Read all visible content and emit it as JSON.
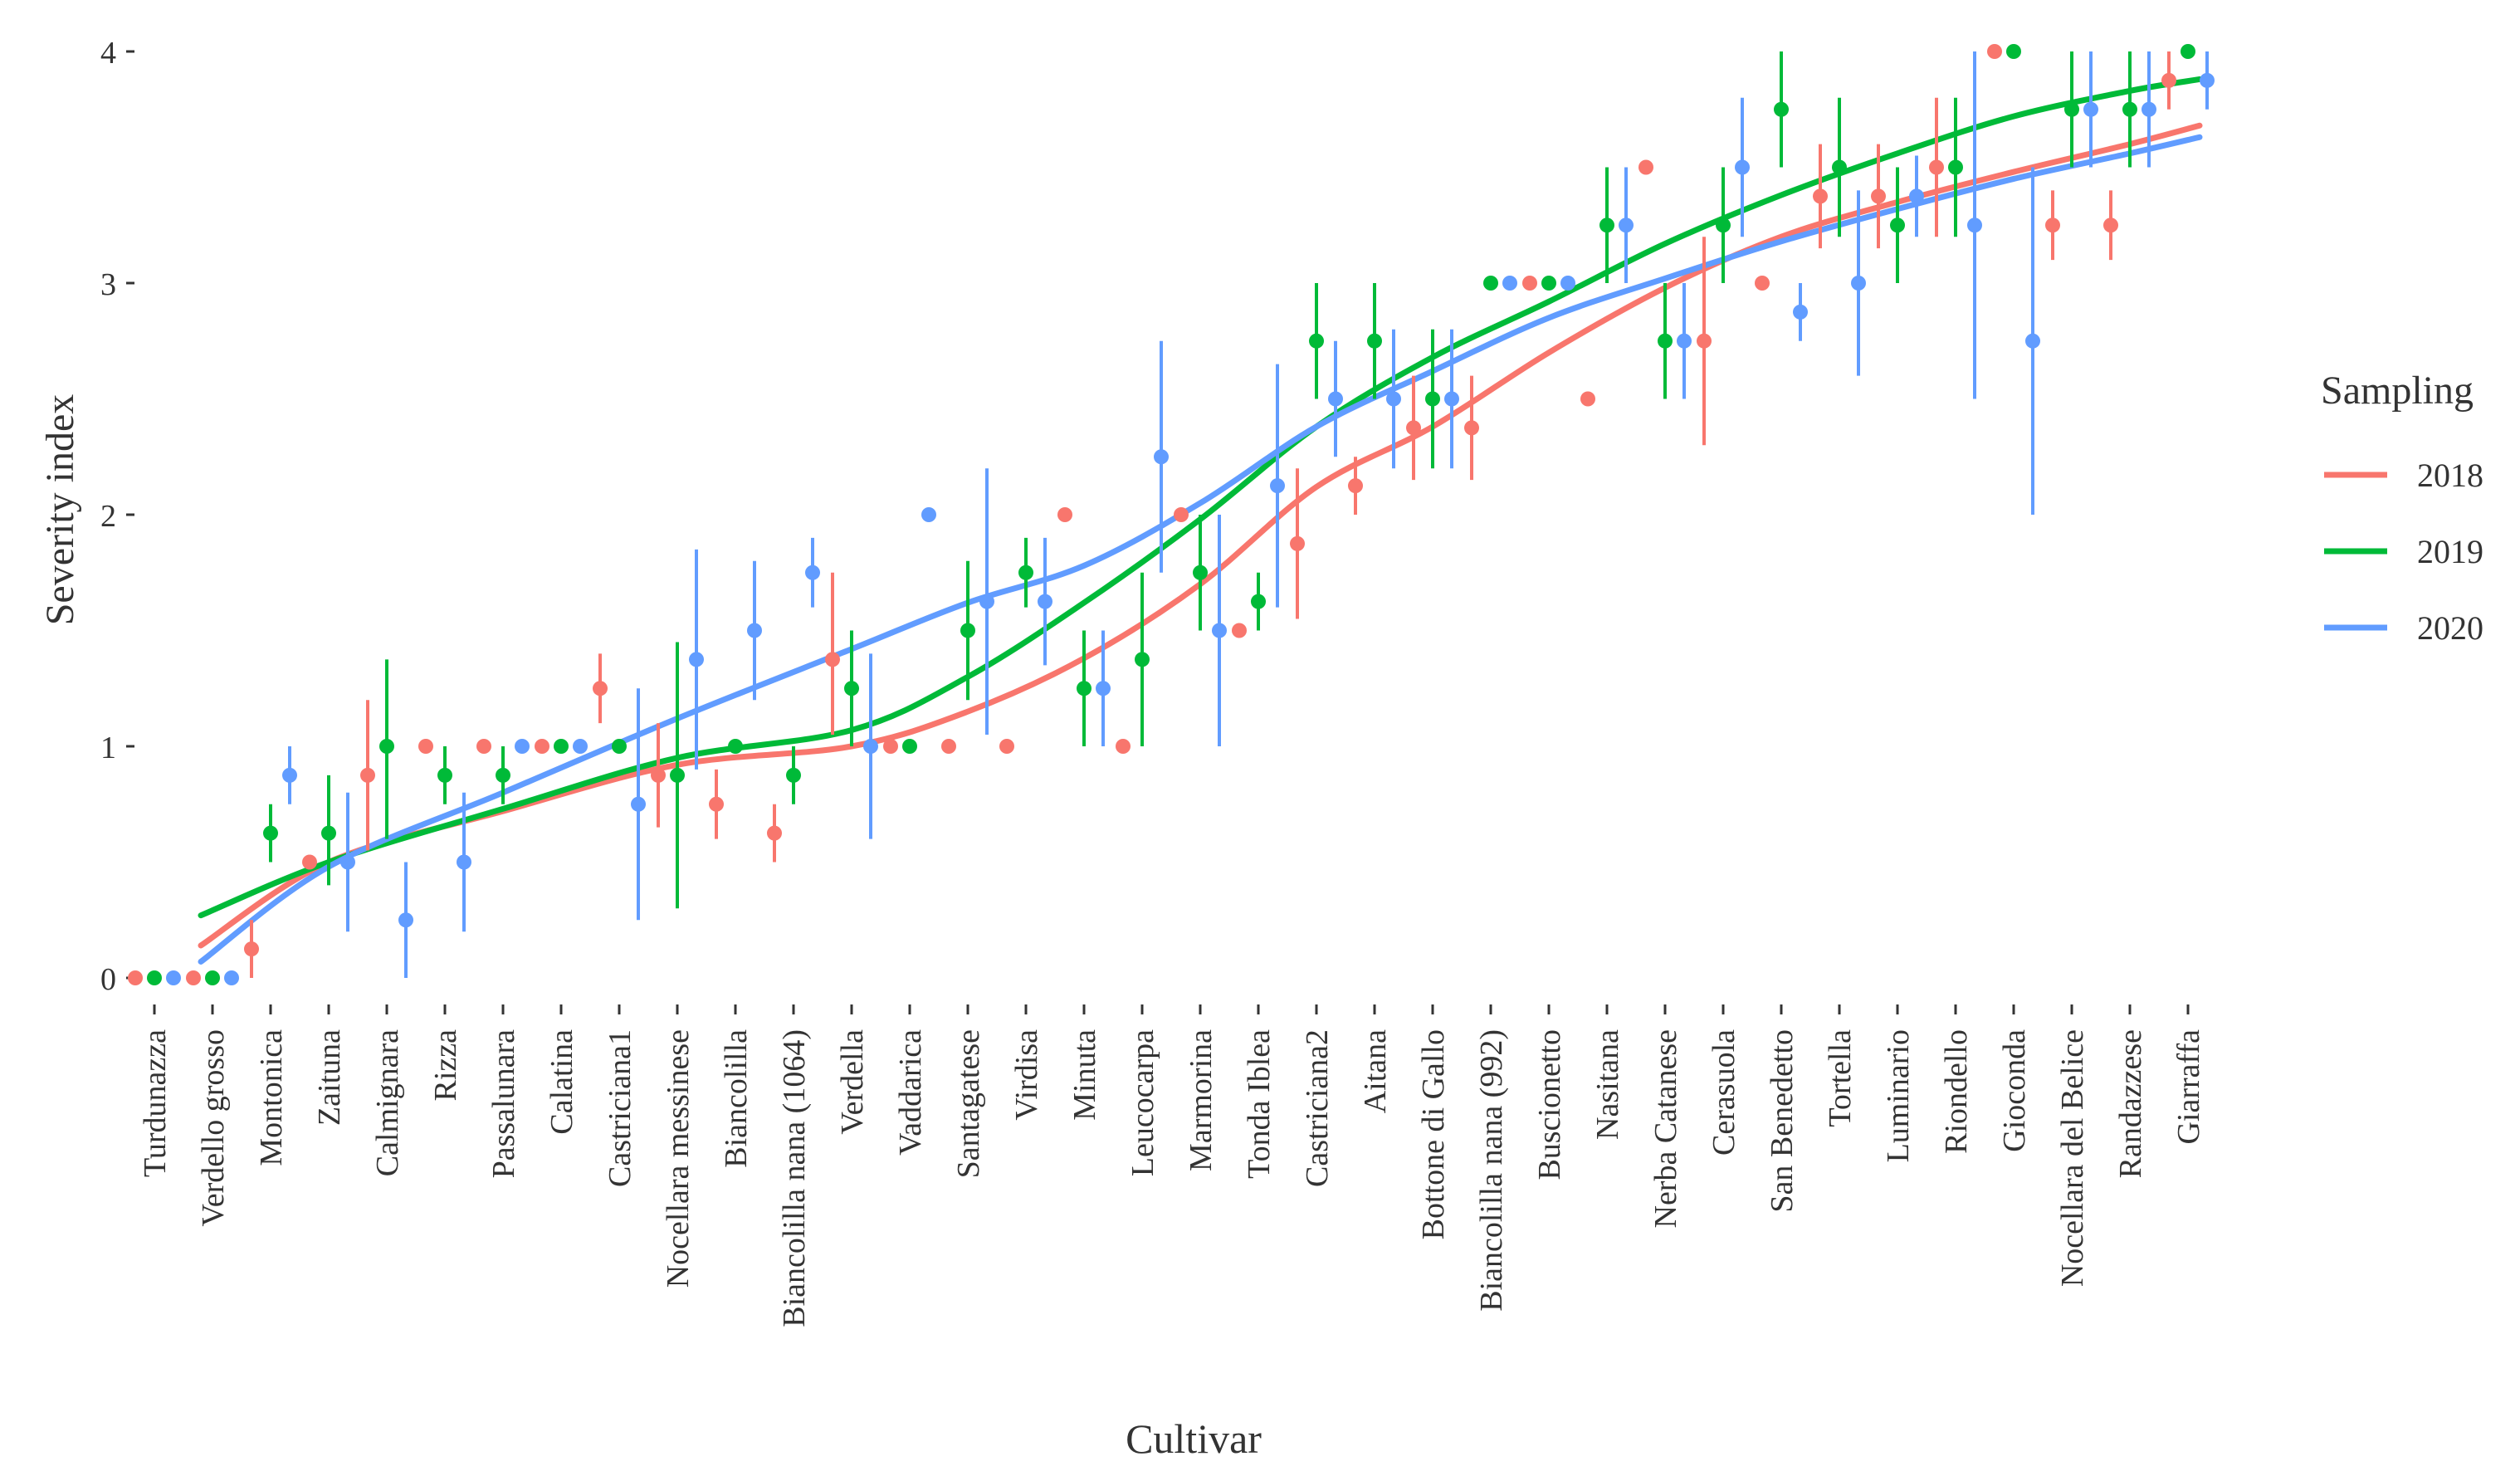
{
  "chart_data": {
    "type": "scatter",
    "title": "",
    "xlabel": "Cultivar",
    "ylabel": "Severity index",
    "ylim": [
      -0.1,
      4.1
    ],
    "yticks": [
      0,
      1,
      2,
      3,
      4
    ],
    "ytick_labels": [
      "0",
      "1",
      "2",
      "3",
      "4"
    ],
    "categories": [
      "Turdunazza",
      "Verdello grosso",
      "Montonica",
      "Zaituna",
      "Calmignara",
      "Rizza",
      "Passalunara",
      "Calatina",
      "Castriciana1",
      "Nocellara messinese",
      "Biancolilla",
      "Biancolilla nana (1064)",
      "Verdella",
      "Vaddarica",
      "Santagatese",
      "Virdisa",
      "Minuta",
      "Leucocarpa",
      "Marmorina",
      "Tonda Iblea",
      "Castriciana2",
      "Aitana",
      "Bottone di Gallo",
      "Biancolilla nana (992)",
      "Buscionetto",
      "Nasitana",
      "Nerba Catanese",
      "Cerasuola",
      "San Benedetto",
      "Tortella",
      "Luminario",
      "Riondello",
      "Gioconda",
      "Nocellara del Belice",
      "Randazzese",
      "Giarraffa"
    ],
    "legend_title": "Sampling",
    "legend_position": "right",
    "series": [
      {
        "name": "2018",
        "color": "#F8766D",
        "values": [
          0,
          0,
          0.125,
          0.5,
          0.875,
          1,
          1,
          1,
          1.25,
          0.875,
          0.75,
          0.625,
          1.375,
          1,
          1,
          1,
          2,
          1,
          2,
          1.5,
          1.875,
          2.125,
          2.375,
          2.375,
          3,
          2.5,
          3.5,
          2.75,
          3,
          3.375,
          3.375,
          3.5,
          4,
          3.25,
          3.25,
          3.875
        ],
        "low": [
          0,
          0,
          0,
          0.5,
          0.55,
          1,
          1,
          1,
          1.1,
          0.65,
          0.6,
          0.5,
          1.05,
          1,
          1,
          1,
          2,
          1,
          2,
          1.5,
          1.55,
          2,
          2.15,
          2.15,
          3,
          2.5,
          3.5,
          2.3,
          3,
          3.15,
          3.15,
          3.2,
          4,
          3.1,
          3.1,
          3.75
        ],
        "high": [
          0,
          0,
          0.25,
          0.5,
          1.2,
          1,
          1,
          1,
          1.4,
          1.1,
          0.9,
          0.75,
          1.75,
          1,
          1,
          1,
          2,
          1,
          2,
          1.5,
          2.2,
          2.25,
          2.6,
          2.6,
          3,
          2.5,
          3.5,
          3.2,
          3,
          3.6,
          3.6,
          3.8,
          4,
          3.4,
          3.4,
          4
        ]
      },
      {
        "name": "2019",
        "color": "#00BA38",
        "values": [
          0,
          0,
          0.625,
          0.625,
          1,
          0.875,
          0.875,
          1,
          1,
          0.875,
          1,
          0.875,
          1.25,
          1,
          1.5,
          1.75,
          1.25,
          1.375,
          1.75,
          1.625,
          2.75,
          2.75,
          2.5,
          3,
          3,
          3.25,
          2.75,
          3.25,
          3.75,
          3.5,
          3.25,
          3.5,
          4,
          3.75,
          3.75,
          4
        ],
        "low": [
          0,
          0,
          0.5,
          0.4,
          0.6,
          0.75,
          0.75,
          1,
          1,
          0.3,
          1,
          0.75,
          1,
          1,
          1.2,
          1.6,
          1,
          1,
          1.5,
          1.5,
          2.5,
          2.5,
          2.2,
          3,
          3,
          3,
          2.5,
          3,
          3.5,
          3.2,
          3,
          3.2,
          4,
          3.5,
          3.5,
          4
        ],
        "high": [
          0,
          0,
          0.75,
          0.875,
          1.375,
          1,
          1,
          1,
          1,
          1.45,
          1,
          1,
          1.5,
          1,
          1.8,
          1.9,
          1.5,
          1.75,
          2,
          1.75,
          3,
          3,
          2.8,
          3,
          3,
          3.5,
          3,
          3.5,
          4,
          3.8,
          3.5,
          3.8,
          4,
          4,
          4,
          4
        ]
      },
      {
        "name": "2020",
        "color": "#619CFF",
        "values": [
          0,
          0,
          0.875,
          0.5,
          0.25,
          0.5,
          1,
          1,
          0.75,
          1.375,
          1.5,
          1.75,
          1,
          2,
          1.625,
          1.625,
          1.25,
          2.25,
          1.5,
          2.125,
          2.5,
          2.5,
          2.5,
          3,
          3,
          3.25,
          2.75,
          3.5,
          2.875,
          3,
          3.375,
          3.25,
          2.75,
          3.75,
          3.75,
          3.875
        ],
        "low": [
          0,
          0,
          0.75,
          0.2,
          0,
          0.2,
          1,
          1,
          0.25,
          0.9,
          1.2,
          1.6,
          0.6,
          2,
          1.05,
          1.35,
          1,
          1.75,
          1,
          1.6,
          2.25,
          2.2,
          2.2,
          3,
          3,
          3,
          2.5,
          3.2,
          2.75,
          2.6,
          3.2,
          2.5,
          2,
          3.5,
          3.5,
          3.75
        ],
        "high": [
          0,
          0,
          1,
          0.8,
          0.5,
          0.8,
          1,
          1,
          1.25,
          1.85,
          1.8,
          1.9,
          1.4,
          2,
          2.2,
          1.9,
          1.5,
          2.75,
          2,
          2.65,
          2.75,
          2.8,
          2.8,
          3,
          3,
          3.5,
          3,
          3.8,
          3,
          3.4,
          3.55,
          4,
          3.5,
          4,
          4,
          4
        ]
      }
    ],
    "trend_lines": [
      {
        "name": "2018",
        "color": "#F8766D",
        "x": [
          0.8,
          3,
          6,
          9,
          12,
          14,
          16,
          18,
          20,
          22,
          24,
          26,
          28,
          30,
          32,
          34,
          35.2
        ],
        "y": [
          0.14,
          0.5,
          0.72,
          0.92,
          1.0,
          1.15,
          1.38,
          1.7,
          2.12,
          2.38,
          2.7,
          2.98,
          3.2,
          3.35,
          3.48,
          3.6,
          3.68
        ]
      },
      {
        "name": "2019",
        "color": "#00BA38",
        "x": [
          0.8,
          3,
          6,
          9,
          12,
          14,
          16,
          18,
          20,
          22,
          24,
          26,
          28,
          30,
          32,
          34,
          35.2
        ],
        "y": [
          0.27,
          0.5,
          0.73,
          0.95,
          1.07,
          1.3,
          1.62,
          1.98,
          2.38,
          2.68,
          2.92,
          3.17,
          3.38,
          3.56,
          3.72,
          3.83,
          3.88
        ]
      },
      {
        "name": "2020",
        "color": "#619CFF",
        "x": [
          0.8,
          3,
          6,
          9,
          12,
          14,
          16,
          18,
          20,
          22,
          24,
          26,
          28,
          30,
          32,
          34,
          35.2
        ],
        "y": [
          0.07,
          0.48,
          0.8,
          1.12,
          1.42,
          1.62,
          1.78,
          2.05,
          2.38,
          2.62,
          2.85,
          3.02,
          3.18,
          3.32,
          3.45,
          3.56,
          3.63
        ]
      }
    ]
  }
}
